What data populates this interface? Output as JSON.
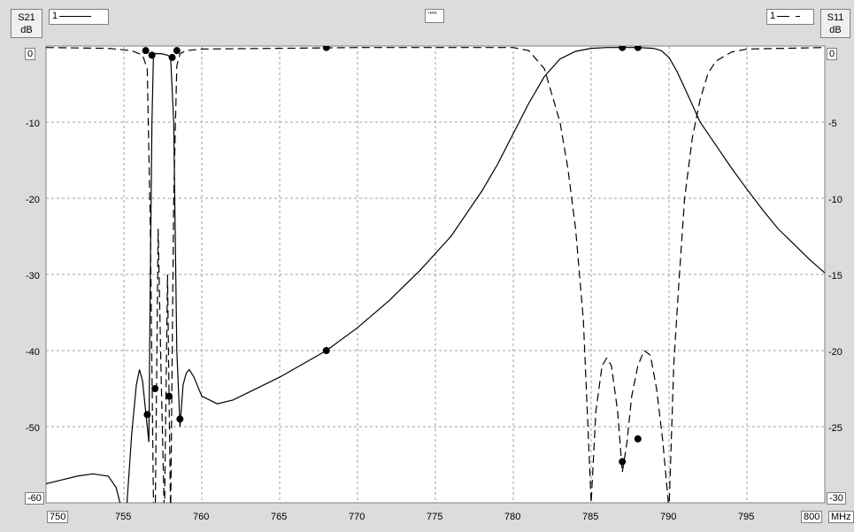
{
  "header": {
    "left_axis_label": "S21",
    "left_axis_unit": "dB",
    "right_axis_label": "S11",
    "right_axis_unit": "dB",
    "left_legend_text": "1",
    "right_legend_text": "1",
    "center_marker": "\"\"\""
  },
  "chart_data": {
    "type": "line",
    "xlabel": "MHz",
    "xlim": [
      750,
      800
    ],
    "x_ticks": [
      750,
      755,
      760,
      765,
      770,
      775,
      780,
      785,
      790,
      795,
      800
    ],
    "left_axis": {
      "label": "S21",
      "unit": "dB",
      "ylim": [
        -60,
        0
      ],
      "ticks": [
        0,
        -10,
        -20,
        -30,
        -40,
        -50,
        -60
      ]
    },
    "right_axis": {
      "label": "S11",
      "unit": "dB",
      "ylim": [
        -30,
        0
      ],
      "ticks": [
        0,
        -5,
        -10,
        -15,
        -20,
        -25,
        -30
      ]
    },
    "grid": true,
    "series": [
      {
        "name": "1",
        "axis": "left",
        "style": "solid",
        "x": [
          750,
          751,
          752,
          753,
          754,
          754.5,
          755,
          755.2,
          755.5,
          755.8,
          756.0,
          756.2,
          756.4,
          756.6,
          756.7,
          756.8,
          756.9,
          757.0,
          757.2,
          757.4,
          757.6,
          757.8,
          758.0,
          758.2,
          758.4,
          758.6,
          758.8,
          759.0,
          759.2,
          759.5,
          760.0,
          761,
          762,
          763,
          765,
          768,
          770,
          772,
          774,
          776,
          778,
          779,
          780,
          781,
          782,
          783,
          784,
          785,
          786,
          787,
          788,
          789,
          789.5,
          790,
          790.5,
          791,
          792,
          793,
          794,
          795,
          796,
          797,
          798,
          799,
          800
        ],
        "y": [
          -57.5,
          -57.0,
          -56.5,
          -56.2,
          -56.5,
          -58.0,
          -62,
          -60,
          -51,
          -44.5,
          -42.5,
          -44,
          -48,
          -52,
          -30,
          -10,
          -1.2,
          -1.0,
          -1.0,
          -1.0,
          -1.1,
          -1.2,
          -1.5,
          -10,
          -40,
          -50,
          -44.5,
          -43.0,
          -42.5,
          -43.5,
          -46.0,
          -47.0,
          -46.5,
          -45.5,
          -43.5,
          -40.0,
          -37.0,
          -33.5,
          -29.5,
          -25.0,
          -19.0,
          -15.5,
          -11.5,
          -7.5,
          -4.0,
          -1.7,
          -0.7,
          -0.3,
          -0.2,
          -0.2,
          -0.2,
          -0.3,
          -0.6,
          -1.5,
          -3.3,
          -5.5,
          -10.0,
          -13.0,
          -16.0,
          -18.8,
          -21.5,
          -24.0,
          -26.0,
          -28.0,
          -29.8
        ]
      },
      {
        "name": "1",
        "axis": "right",
        "style": "dashed",
        "x": [
          750,
          754,
          755.5,
          756.2,
          756.5,
          756.7,
          756.9,
          757.0,
          757.2,
          757.4,
          757.6,
          757.8,
          758.0,
          758.2,
          758.4,
          758.6,
          759.0,
          760,
          765,
          770,
          775,
          780,
          781,
          782,
          783,
          783.5,
          784,
          784.5,
          785.0,
          785.3,
          785.7,
          786.0,
          786.3,
          786.7,
          787.0,
          787.3,
          787.6,
          788.0,
          788.4,
          788.8,
          789.2,
          789.6,
          790.0,
          790.3,
          790.6,
          791.0,
          791.5,
          792.0,
          792.5,
          793,
          794,
          795,
          800
        ],
        "y": [
          -0.1,
          -0.15,
          -0.3,
          -0.6,
          -1.5,
          -12,
          -30,
          -32,
          -12,
          -22,
          -31,
          -15,
          -31,
          -10,
          -1.3,
          -0.5,
          -0.3,
          -0.2,
          -0.15,
          -0.1,
          -0.1,
          -0.1,
          -0.3,
          -1.5,
          -5.0,
          -8.0,
          -12.0,
          -18.0,
          -30,
          -24.0,
          -21.0,
          -20.5,
          -21.0,
          -24.0,
          -28.0,
          -26.0,
          -23.0,
          -21.0,
          -20.0,
          -20.3,
          -22.5,
          -26.0,
          -30.5,
          -21.0,
          -16.0,
          -10.0,
          -6.0,
          -3.5,
          -1.8,
          -1.0,
          -0.4,
          -0.2,
          -0.1
        ]
      }
    ],
    "markers": [
      {
        "series": 0,
        "x": 756.8,
        "y": -1.2
      },
      {
        "series": 0,
        "x": 758.1,
        "y": -1.5
      },
      {
        "series": 0,
        "x": 757.0,
        "y": -45.0
      },
      {
        "series": 0,
        "x": 758.6,
        "y": -49.0
      },
      {
        "series": 0,
        "x": 768.0,
        "y": -40.0
      },
      {
        "series": 0,
        "x": 787.0,
        "y": -0.2
      },
      {
        "series": 0,
        "x": 788.0,
        "y": -0.2
      },
      {
        "series": 1,
        "x": 756.4,
        "y": -0.3
      },
      {
        "series": 1,
        "x": 758.4,
        "y": -0.3
      },
      {
        "series": 1,
        "x": 768.0,
        "y": -0.1
      },
      {
        "series": 1,
        "x": 756.5,
        "y": -24.2
      },
      {
        "series": 1,
        "x": 757.9,
        "y": -23.0
      },
      {
        "series": 1,
        "x": 787.0,
        "y": -27.3
      },
      {
        "series": 1,
        "x": 788.0,
        "y": -25.8
      }
    ]
  }
}
